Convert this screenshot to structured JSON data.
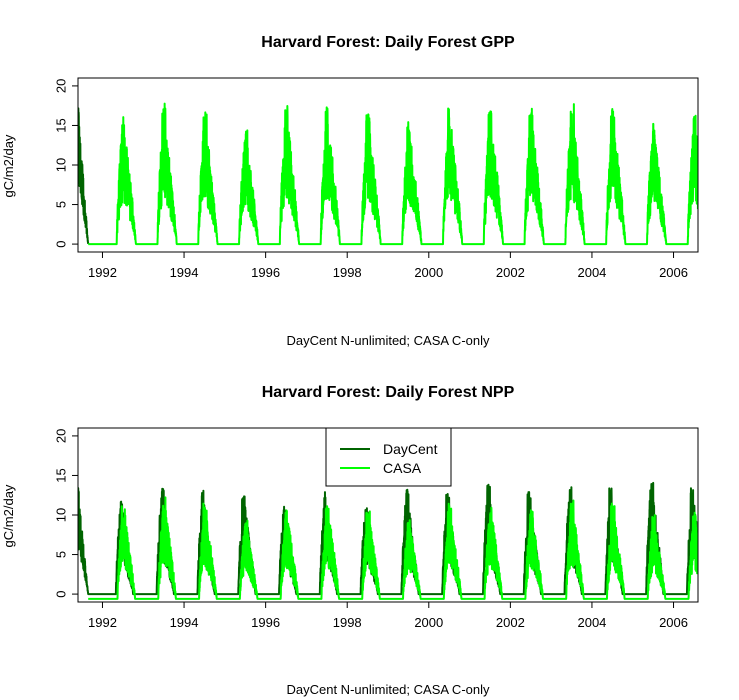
{
  "colors": {
    "daycent": "#006400",
    "casa": "#00ff00",
    "axis": "#000000"
  },
  "chart_data": [
    {
      "type": "line",
      "title": "Harvard Forest: Daily Forest GPP",
      "xlabel": "DayCent N-unlimited; CASA C-only",
      "ylabel": "gC/m2/day",
      "xlim": [
        1991.4,
        2006.6
      ],
      "ylim": [
        -1,
        21
      ],
      "xticks": [
        "1992",
        "1994",
        "1996",
        "1998",
        "2000",
        "2002",
        "2004",
        "2006"
      ],
      "yticks": [
        "0",
        "5",
        "10",
        "15",
        "20"
      ],
      "legend": null,
      "series": [
        {
          "name": "DayCent",
          "color": "#006400",
          "start_year": 1991.4,
          "end_year": 1991.65,
          "start_value": 17.5,
          "baseline": 0
        },
        {
          "name": "CASA",
          "color": "#00ff00",
          "start_year": 1991.65,
          "baseline": 0,
          "season_start": 0.35,
          "season_peak": 0.5,
          "season_end": 0.82,
          "peaks": [
            {
              "year": 1992,
              "value": 16.3
            },
            {
              "year": 1993,
              "value": 17.8
            },
            {
              "year": 1994,
              "value": 16.8
            },
            {
              "year": 1995,
              "value": 14.5
            },
            {
              "year": 1996,
              "value": 17.5
            },
            {
              "year": 1997,
              "value": 17.5
            },
            {
              "year": 1998,
              "value": 16.5
            },
            {
              "year": 1999,
              "value": 15.5
            },
            {
              "year": 2000,
              "value": 17.2
            },
            {
              "year": 2001,
              "value": 17.3
            },
            {
              "year": 2002,
              "value": 17.2
            },
            {
              "year": 2003,
              "value": 17.8
            },
            {
              "year": 2004,
              "value": 17.2
            },
            {
              "year": 2005,
              "value": 15.3
            },
            {
              "year": 2006,
              "value": 16.3
            }
          ]
        }
      ]
    },
    {
      "type": "line",
      "title": "Harvard Forest: Daily Forest NPP",
      "xlabel": "DayCent N-unlimited; CASA C-only",
      "ylabel": "gC/m2/day",
      "xlim": [
        1991.4,
        2006.6
      ],
      "ylim": [
        -1,
        21
      ],
      "xticks": [
        "1992",
        "1994",
        "1996",
        "1998",
        "2000",
        "2002",
        "2004",
        "2006"
      ],
      "yticks": [
        "0",
        "5",
        "10",
        "15",
        "20"
      ],
      "legend": {
        "position": "top-center",
        "entries": [
          "DayCent",
          "CASA"
        ]
      },
      "series": [
        {
          "name": "DayCent",
          "color": "#006400",
          "start_year": 1991.4,
          "baseline": 0,
          "season_start": 0.33,
          "season_peak": 0.45,
          "season_end": 0.75,
          "start_value": 13.5,
          "peaks": [
            {
              "year": 1992,
              "value": 12.4
            },
            {
              "year": 1993,
              "value": 13.5
            },
            {
              "year": 1994,
              "value": 13.2
            },
            {
              "year": 1995,
              "value": 12.8
            },
            {
              "year": 1996,
              "value": 11.5
            },
            {
              "year": 1997,
              "value": 13.1
            },
            {
              "year": 1998,
              "value": 11.8
            },
            {
              "year": 1999,
              "value": 13.6
            },
            {
              "year": 2000,
              "value": 13.0
            },
            {
              "year": 2001,
              "value": 14.0
            },
            {
              "year": 2002,
              "value": 13.0
            },
            {
              "year": 2003,
              "value": 13.8
            },
            {
              "year": 2004,
              "value": 13.6
            },
            {
              "year": 2005,
              "value": 14.5
            },
            {
              "year": 2006,
              "value": 13.7
            }
          ]
        },
        {
          "name": "CASA",
          "color": "#00ff00",
          "start_year": 1991.65,
          "baseline": -0.6,
          "season_start": 0.37,
          "season_peak": 0.5,
          "season_end": 0.8,
          "peaks": [
            {
              "year": 1992,
              "value": 12.0
            },
            {
              "year": 1993,
              "value": 12.5
            },
            {
              "year": 1994,
              "value": 11.5
            },
            {
              "year": 1995,
              "value": 9.5
            },
            {
              "year": 1996,
              "value": 11.0
            },
            {
              "year": 1997,
              "value": 12.0
            },
            {
              "year": 1998,
              "value": 11.0
            },
            {
              "year": 1999,
              "value": 10.0
            },
            {
              "year": 2000,
              "value": 11.5
            },
            {
              "year": 2001,
              "value": 11.5
            },
            {
              "year": 2002,
              "value": 11.0
            },
            {
              "year": 2003,
              "value": 12.0
            },
            {
              "year": 2004,
              "value": 11.5
            },
            {
              "year": 2005,
              "value": 10.0
            },
            {
              "year": 2006,
              "value": 11.0
            }
          ]
        }
      ]
    }
  ]
}
